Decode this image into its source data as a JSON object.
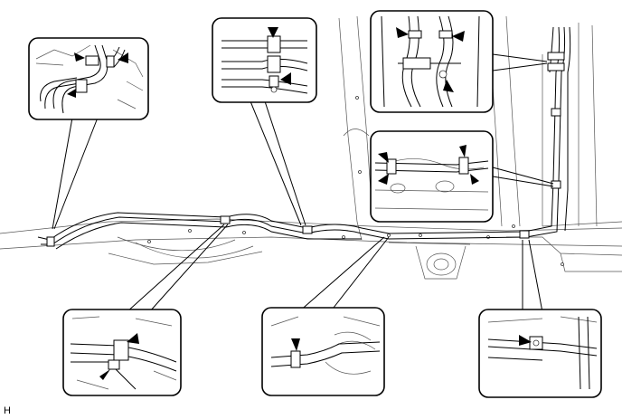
{
  "figure_code": "H"
}
